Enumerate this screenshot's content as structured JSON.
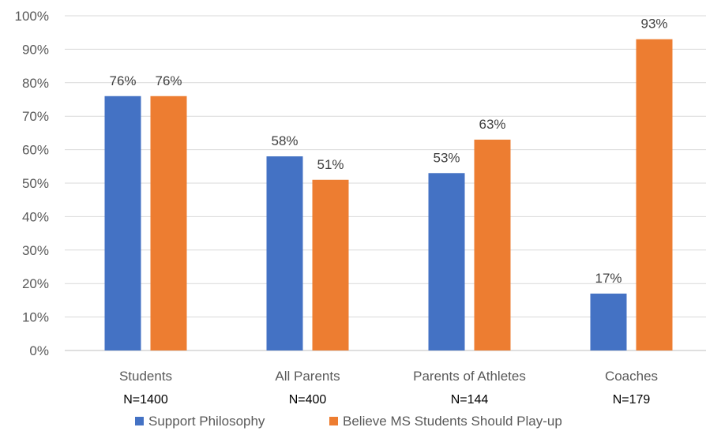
{
  "chart_data": {
    "type": "bar",
    "categories": [
      "Students",
      "All Parents",
      "Parents of Athletes",
      "Coaches"
    ],
    "sublabels": [
      "N=1400",
      "N=400",
      "N=144",
      "N=179"
    ],
    "series": [
      {
        "name": "Support Philosophy",
        "values": [
          76,
          58,
          53,
          17
        ],
        "labels": [
          "76%",
          "58%",
          "53%",
          "17%"
        ],
        "color": "#4472C4"
      },
      {
        "name": "Believe MS Students Should Play-up",
        "values": [
          76,
          51,
          63,
          93
        ],
        "labels": [
          "76%",
          "51%",
          "63%",
          "93%"
        ],
        "color": "#ED7D31"
      }
    ],
    "y_ticks": [
      "0%",
      "10%",
      "20%",
      "30%",
      "40%",
      "50%",
      "60%",
      "70%",
      "80%",
      "90%",
      "100%"
    ],
    "ylim": [
      0,
      100
    ],
    "grid": true,
    "legend_position": "bottom",
    "title": "",
    "xlabel": "",
    "ylabel": ""
  }
}
